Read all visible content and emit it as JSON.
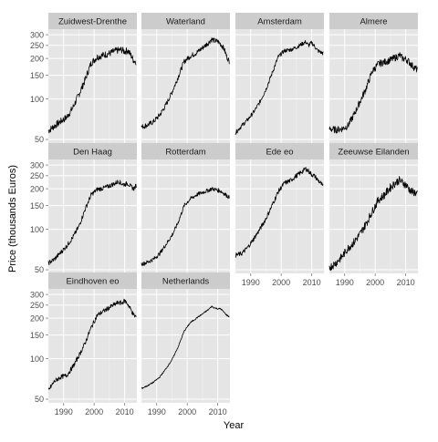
{
  "chart_data": {
    "type": "line",
    "facet": "wrap",
    "xlabel": "Year",
    "ylabel": "Price (thousands Euros)",
    "yscale": "log",
    "xlim": [
      1985,
      2014
    ],
    "ylim": [
      47,
      330
    ],
    "x_ticks": [
      1990,
      2000,
      2010
    ],
    "y_ticks": [
      50,
      100,
      150,
      200,
      250,
      300
    ],
    "grid": true,
    "colors": {
      "panel_bg": "#e5e5e5",
      "strip_bg": "#cccccc",
      "gridline": "#ffffff",
      "line": "#000000",
      "tick_text": "#4d4d4d"
    },
    "panels": [
      {
        "name": "Zuidwest-Drenthe",
        "points": [
          [
            1985,
            58
          ],
          [
            1987,
            63
          ],
          [
            1989,
            68
          ],
          [
            1991,
            73
          ],
          [
            1993,
            86
          ],
          [
            1995,
            108
          ],
          [
            1997,
            138
          ],
          [
            1999,
            185
          ],
          [
            2001,
            205
          ],
          [
            2003,
            212
          ],
          [
            2005,
            218
          ],
          [
            2007,
            228
          ],
          [
            2009,
            232
          ],
          [
            2010,
            225
          ],
          [
            2011,
            230
          ],
          [
            2012,
            212
          ],
          [
            2013,
            192
          ],
          [
            2013.8,
            190
          ]
        ],
        "noise": 0.06
      },
      {
        "name": "Waterland",
        "points": [
          [
            1985,
            62
          ],
          [
            1987,
            64
          ],
          [
            1989,
            68
          ],
          [
            1991,
            76
          ],
          [
            1993,
            90
          ],
          [
            1995,
            112
          ],
          [
            1997,
            145
          ],
          [
            1999,
            190
          ],
          [
            2001,
            208
          ],
          [
            2003,
            220
          ],
          [
            2005,
            240
          ],
          [
            2007,
            262
          ],
          [
            2008,
            278
          ],
          [
            2009,
            270
          ],
          [
            2010,
            268
          ],
          [
            2011,
            255
          ],
          [
            2012,
            238
          ],
          [
            2013,
            205
          ],
          [
            2013.8,
            190
          ]
        ],
        "noise": 0.045
      },
      {
        "name": "Amsterdam",
        "points": [
          [
            1985,
            56
          ],
          [
            1987,
            63
          ],
          [
            1989,
            70
          ],
          [
            1991,
            80
          ],
          [
            1993,
            95
          ],
          [
            1995,
            118
          ],
          [
            1997,
            155
          ],
          [
            1999,
            205
          ],
          [
            2001,
            228
          ],
          [
            2003,
            232
          ],
          [
            2005,
            242
          ],
          [
            2007,
            258
          ],
          [
            2008,
            265
          ],
          [
            2009,
            250
          ],
          [
            2010,
            262
          ],
          [
            2011,
            245
          ],
          [
            2012,
            228
          ],
          [
            2013,
            222
          ],
          [
            2013.8,
            218
          ]
        ],
        "noise": 0.035
      },
      {
        "name": "Almere",
        "points": [
          [
            1985,
            60
          ],
          [
            1987,
            59
          ],
          [
            1989,
            60
          ],
          [
            1991,
            63
          ],
          [
            1993,
            76
          ],
          [
            1995,
            95
          ],
          [
            1997,
            120
          ],
          [
            1999,
            160
          ],
          [
            2001,
            182
          ],
          [
            2003,
            188
          ],
          [
            2005,
            195
          ],
          [
            2007,
            205
          ],
          [
            2008,
            212
          ],
          [
            2009,
            200
          ],
          [
            2010,
            198
          ],
          [
            2011,
            190
          ],
          [
            2012,
            178
          ],
          [
            2013,
            170
          ],
          [
            2013.8,
            165
          ]
        ],
        "noise": 0.06
      },
      {
        "name": "Den Haag",
        "points": [
          [
            1985,
            56
          ],
          [
            1987,
            60
          ],
          [
            1989,
            67
          ],
          [
            1991,
            75
          ],
          [
            1993,
            87
          ],
          [
            1995,
            105
          ],
          [
            1997,
            140
          ],
          [
            1999,
            180
          ],
          [
            2001,
            198
          ],
          [
            2003,
            202
          ],
          [
            2005,
            210
          ],
          [
            2007,
            220
          ],
          [
            2008,
            228
          ],
          [
            2009,
            218
          ],
          [
            2010,
            215
          ],
          [
            2011,
            220
          ],
          [
            2012,
            208
          ],
          [
            2013,
            200
          ],
          [
            2013.8,
            212
          ]
        ],
        "noise": 0.04
      },
      {
        "name": "Rotterdam",
        "points": [
          [
            1985,
            55
          ],
          [
            1987,
            57
          ],
          [
            1989,
            60
          ],
          [
            1991,
            66
          ],
          [
            1993,
            77
          ],
          [
            1995,
            90
          ],
          [
            1997,
            112
          ],
          [
            1999,
            150
          ],
          [
            2001,
            168
          ],
          [
            2003,
            180
          ],
          [
            2005,
            188
          ],
          [
            2007,
            195
          ],
          [
            2008,
            200
          ],
          [
            2009,
            198
          ],
          [
            2010,
            195
          ],
          [
            2011,
            192
          ],
          [
            2012,
            185
          ],
          [
            2013,
            178
          ],
          [
            2013.8,
            172
          ]
        ],
        "noise": 0.035
      },
      {
        "name": "Ede eo",
        "points": [
          [
            1985,
            64
          ],
          [
            1987,
            66
          ],
          [
            1989,
            73
          ],
          [
            1991,
            85
          ],
          [
            1993,
            100
          ],
          [
            1995,
            120
          ],
          [
            1997,
            150
          ],
          [
            1999,
            190
          ],
          [
            2001,
            220
          ],
          [
            2003,
            230
          ],
          [
            2005,
            250
          ],
          [
            2007,
            270
          ],
          [
            2008,
            282
          ],
          [
            2009,
            270
          ],
          [
            2010,
            255
          ],
          [
            2011,
            248
          ],
          [
            2012,
            232
          ],
          [
            2013,
            220
          ],
          [
            2013.8,
            205
          ]
        ],
        "noise": 0.04
      },
      {
        "name": "Zeeuwse Eilanden",
        "points": [
          [
            1985,
            52
          ],
          [
            1987,
            56
          ],
          [
            1989,
            62
          ],
          [
            1991,
            72
          ],
          [
            1993,
            80
          ],
          [
            1995,
            92
          ],
          [
            1997,
            110
          ],
          [
            1999,
            135
          ],
          [
            2001,
            165
          ],
          [
            2003,
            180
          ],
          [
            2005,
            205
          ],
          [
            2007,
            225
          ],
          [
            2008,
            232
          ],
          [
            2009,
            222
          ],
          [
            2010,
            215
          ],
          [
            2011,
            200
          ],
          [
            2012,
            190
          ],
          [
            2013,
            188
          ],
          [
            2013.8,
            182
          ]
        ],
        "noise": 0.07
      },
      {
        "name": "Eindhoven eo",
        "points": [
          [
            1985,
            58
          ],
          [
            1987,
            68
          ],
          [
            1989,
            73
          ],
          [
            1991,
            75
          ],
          [
            1993,
            87
          ],
          [
            1995,
            105
          ],
          [
            1997,
            130
          ],
          [
            1999,
            170
          ],
          [
            2001,
            210
          ],
          [
            2003,
            225
          ],
          [
            2005,
            240
          ],
          [
            2007,
            255
          ],
          [
            2008,
            262
          ],
          [
            2009,
            258
          ],
          [
            2010,
            270
          ],
          [
            2011,
            255
          ],
          [
            2012,
            232
          ],
          [
            2013,
            210
          ],
          [
            2013.8,
            205
          ]
        ],
        "noise": 0.04
      },
      {
        "name": "Netherlands",
        "points": [
          [
            1985,
            60
          ],
          [
            1987,
            63
          ],
          [
            1989,
            67
          ],
          [
            1991,
            73
          ],
          [
            1993,
            84
          ],
          [
            1995,
            98
          ],
          [
            1997,
            122
          ],
          [
            1999,
            160
          ],
          [
            2001,
            185
          ],
          [
            2003,
            200
          ],
          [
            2005,
            215
          ],
          [
            2007,
            232
          ],
          [
            2008,
            245
          ],
          [
            2009,
            238
          ],
          [
            2010,
            235
          ],
          [
            2011,
            235
          ],
          [
            2012,
            222
          ],
          [
            2013,
            210
          ],
          [
            2013.8,
            205
          ]
        ],
        "noise": 0.012
      }
    ]
  }
}
